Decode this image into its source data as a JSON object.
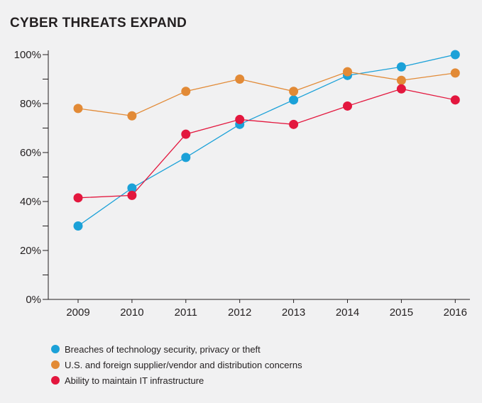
{
  "chart_data": {
    "type": "line",
    "title": "CYBER THREATS EXPAND",
    "xlabel": "",
    "ylabel": "",
    "categories": [
      "2009",
      "2010",
      "2011",
      "2012",
      "2013",
      "2014",
      "2015",
      "2016"
    ],
    "ylim": [
      0,
      100
    ],
    "yticks": [
      0,
      20,
      40,
      60,
      80,
      100
    ],
    "ytick_labels": [
      "0%",
      "20%",
      "40%",
      "60%",
      "80%",
      "100%"
    ],
    "grid": false,
    "legend_position": "bottom",
    "series": [
      {
        "name": "Breaches of technology security, privacy or theft",
        "color": "#1ba1d8",
        "values": [
          30,
          45.5,
          58,
          71.5,
          81.5,
          91.5,
          95,
          100
        ]
      },
      {
        "name": "U.S. and foreign supplier/vendor and distribution concerns",
        "color": "#e28a36",
        "values": [
          78,
          75,
          85,
          90,
          85,
          93,
          89.5,
          92.5
        ]
      },
      {
        "name": "Ability to maintain IT infrastructure",
        "color": "#e3173e",
        "values": [
          41.5,
          42.5,
          67.5,
          73.5,
          71.5,
          79,
          86,
          81.5
        ]
      }
    ]
  }
}
